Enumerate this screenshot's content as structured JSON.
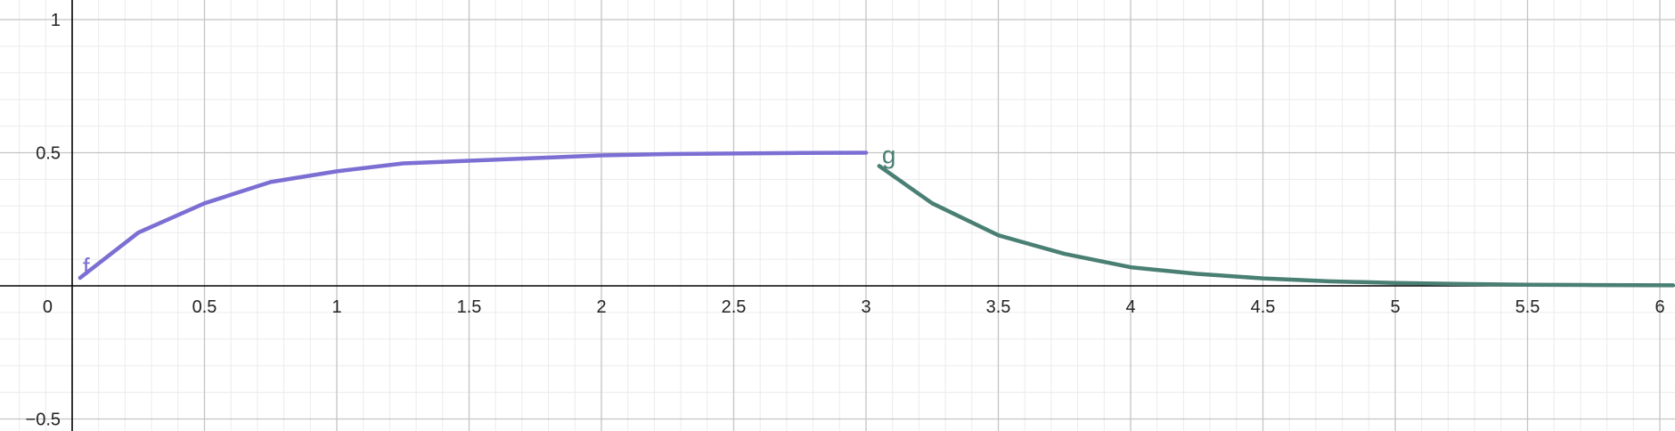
{
  "chart_data": {
    "type": "line",
    "title": "",
    "xlabel": "",
    "ylabel": "",
    "xlim": [
      -0.27,
      6.05
    ],
    "ylim": [
      -0.55,
      1.07
    ],
    "grid": true,
    "x_ticks": [
      {
        "value": 0.5,
        "label": "0.5"
      },
      {
        "value": 1,
        "label": "1"
      },
      {
        "value": 1.5,
        "label": "1.5"
      },
      {
        "value": 2,
        "label": "2"
      },
      {
        "value": 2.5,
        "label": "2.5"
      },
      {
        "value": 3,
        "label": "3"
      },
      {
        "value": 3.5,
        "label": "3.5"
      },
      {
        "value": 4,
        "label": "4"
      },
      {
        "value": 4.5,
        "label": "4.5"
      },
      {
        "value": 5,
        "label": "5"
      },
      {
        "value": 5.5,
        "label": "5.5"
      },
      {
        "value": 6,
        "label": "6"
      }
    ],
    "y_ticks": [
      {
        "value": 1,
        "label": "1"
      },
      {
        "value": 0.5,
        "label": "0.5"
      },
      {
        "value": -0.5,
        "label": "−0.5"
      }
    ],
    "origin_label": "0",
    "series": [
      {
        "name": "f",
        "color": "#7b6fd3",
        "x": [
          0.03,
          0.25,
          0.5,
          0.75,
          1.0,
          1.25,
          1.5,
          1.75,
          2.0,
          2.25,
          2.5,
          2.75,
          3.0
        ],
        "y": [
          0.03,
          0.2,
          0.31,
          0.39,
          0.43,
          0.46,
          0.47,
          0.48,
          0.49,
          0.495,
          0.497,
          0.499,
          0.5
        ]
      },
      {
        "name": "g",
        "color": "#4a7f74",
        "x": [
          3.05,
          3.25,
          3.5,
          3.75,
          4.0,
          4.25,
          4.5,
          4.75,
          5.0,
          5.25,
          5.5,
          5.75,
          6.05
        ],
        "y": [
          0.45,
          0.31,
          0.19,
          0.12,
          0.07,
          0.045,
          0.028,
          0.017,
          0.011,
          0.007,
          0.004,
          0.003,
          0.002
        ]
      }
    ]
  }
}
